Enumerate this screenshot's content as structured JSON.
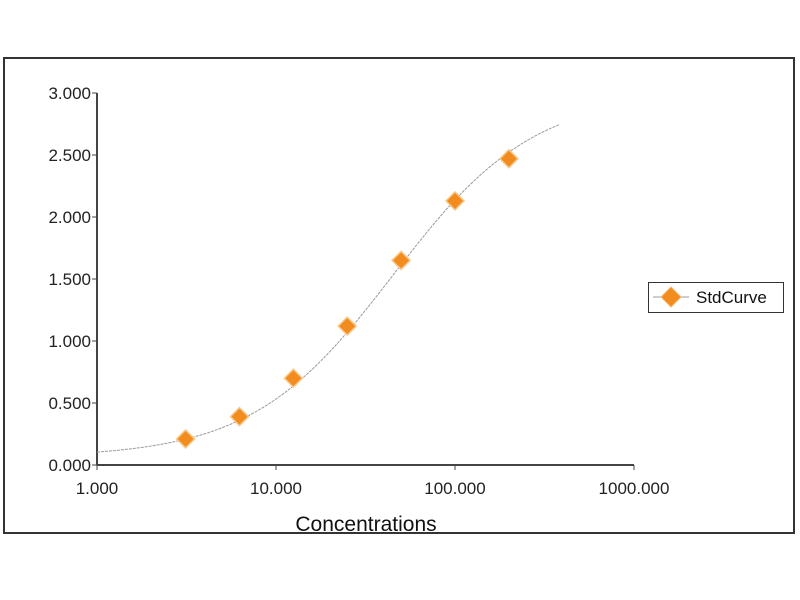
{
  "chart_data": {
    "type": "scatter",
    "title": "",
    "xlabel": "Concentrations",
    "ylabel": "",
    "x_scale": "log",
    "xlim": [
      1,
      1000
    ],
    "ylim": [
      0,
      3
    ],
    "grid": false,
    "legend_position": "right",
    "x_tick_labels": [
      "1.000",
      "10.000",
      "100.000",
      "1000.000"
    ],
    "y_tick_labels": [
      "0.000",
      "0.500",
      "1.000",
      "1.500",
      "2.000",
      "2.500",
      "3.000"
    ],
    "series": [
      {
        "name": "StdCurve",
        "marker": "diamond",
        "color": "#F28C1E",
        "fit_line_color": "#9a9a9a",
        "x": [
          3.125,
          6.25,
          12.5,
          25,
          50,
          100,
          200
        ],
        "y": [
          0.21,
          0.39,
          0.7,
          1.12,
          1.65,
          2.13,
          2.47
        ]
      }
    ]
  }
}
